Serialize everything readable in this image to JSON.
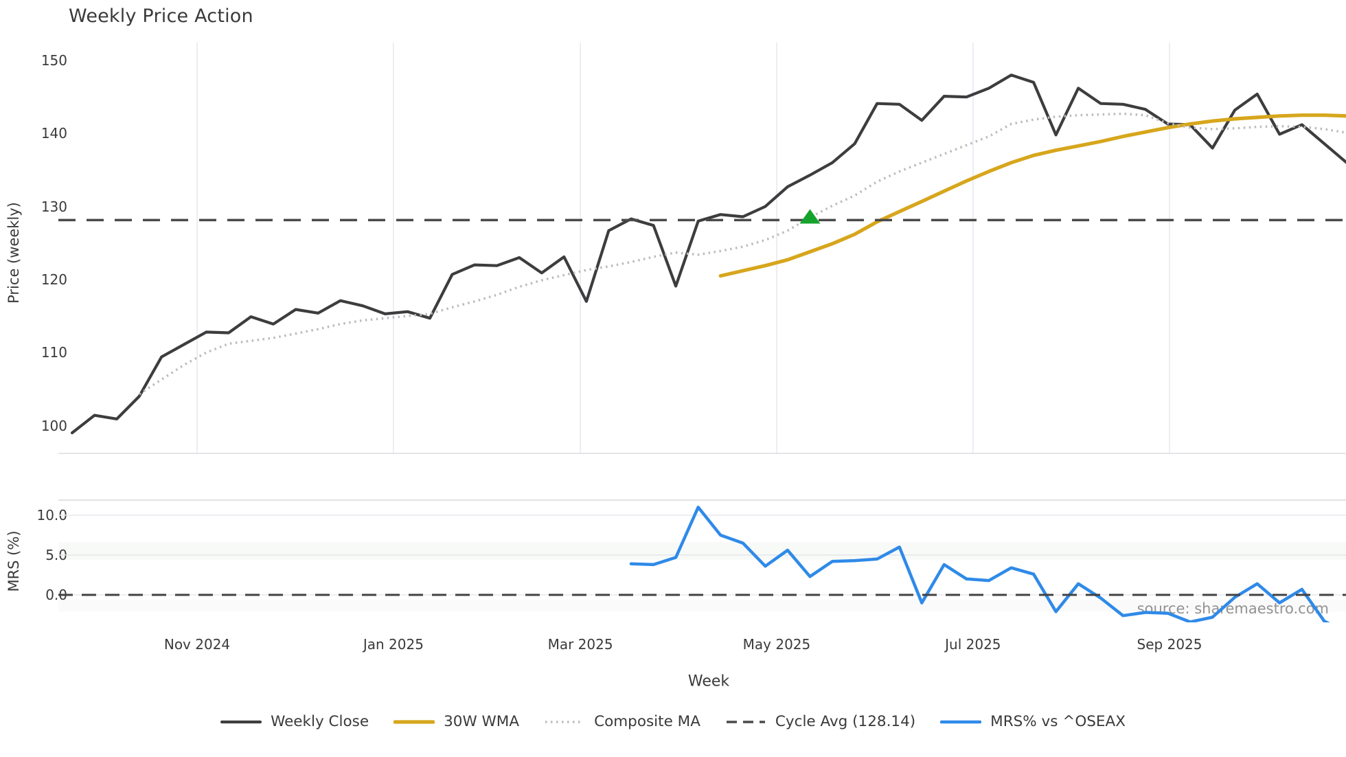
{
  "title": "Weekly Price Action",
  "watermark": "source: sharemaestro.com",
  "legend": {
    "items": [
      {
        "label": "Weekly Close",
        "color": "#3d3d3f",
        "style": "solid",
        "width": 4.2
      },
      {
        "label": "30W WMA",
        "color": "#d7a61c",
        "style": "solid",
        "width": 5.2
      },
      {
        "label": "Composite MA",
        "color": "#bcbcbc",
        "style": "dotted",
        "width": 3.5
      },
      {
        "label": "Cycle Avg (128.14)",
        "color": "#4a4a4b",
        "style": "dashed",
        "width": 3.5
      },
      {
        "label": "MRS% vs ^OSEAX",
        "color": "#2f8ae8",
        "style": "solid",
        "width": 4.5
      }
    ]
  },
  "chart_data": {
    "type": "line",
    "title": "Weekly Price Action",
    "x_axis": {
      "label": "Week",
      "months": [
        {
          "label": "Nov 2024",
          "week": 5.59
        },
        {
          "label": "Jan 2025",
          "week": 14.37
        },
        {
          "label": "Mar 2025",
          "week": 22.73
        },
        {
          "label": "May 2025",
          "week": 31.51
        },
        {
          "label": "Jul 2025",
          "week": 40.29
        },
        {
          "label": "Sep 2025",
          "week": 49.08
        }
      ]
    },
    "panels": [
      {
        "name": "price",
        "ylabel": "Price (weekly)",
        "ylim": [
          97.5,
          152.5
        ],
        "yticks": [
          {
            "value": 150,
            "label": "150"
          },
          {
            "value": 140,
            "label": "140"
          },
          {
            "value": 130,
            "label": "130"
          },
          {
            "value": 120,
            "label": "120"
          },
          {
            "value": 110,
            "label": "110"
          },
          {
            "value": 100,
            "label": "100"
          }
        ],
        "series": [
          {
            "name": "Weekly Close",
            "color": "#3d3d3f",
            "style": "solid",
            "width": 4.2,
            "start_week": 0,
            "values": [
              99.0,
              101.4,
              100.9,
              104.0,
              109.4,
              111.1,
              112.8,
              112.7,
              114.9,
              113.9,
              115.9,
              115.4,
              117.1,
              116.4,
              115.3,
              115.6,
              114.7,
              120.7,
              122.0,
              121.9,
              123.0,
              120.9,
              123.1,
              117.0,
              126.7,
              128.3,
              127.4,
              119.1,
              128.0,
              128.9,
              128.6,
              130.0,
              132.7,
              134.3,
              136.0,
              138.6,
              144.1,
              144.0,
              141.8,
              145.1,
              145.0,
              146.2,
              148.0,
              147.0,
              139.8,
              146.2,
              144.1,
              144.0,
              143.3,
              141.3,
              141.2,
              138.0,
              143.2,
              145.4,
              139.9,
              141.2,
              138.6,
              136.0
            ]
          },
          {
            "name": "30W WMA",
            "color": "#d7a61c",
            "style": "solid",
            "width": 5.2,
            "start_week": 29,
            "values": [
              120.5,
              121.2,
              121.9,
              122.7,
              123.8,
              124.9,
              126.2,
              127.9,
              129.3,
              130.7,
              132.1,
              133.5,
              134.8,
              136.0,
              137.0,
              137.7,
              138.3,
              138.9,
              139.6,
              140.2,
              140.8,
              141.3,
              141.7,
              142.0,
              142.2,
              142.4,
              142.5,
              142.5,
              142.4
            ]
          },
          {
            "name": "Composite MA",
            "color": "#bcbcbc",
            "style": "dotted",
            "width": 3.5,
            "start_week": 3,
            "values": [
              104.3,
              106.3,
              108.3,
              110.0,
              111.2,
              111.6,
              112.0,
              112.6,
              113.2,
              113.9,
              114.4,
              114.7,
              115.0,
              115.3,
              116.2,
              117.0,
              117.9,
              119.0,
              119.9,
              120.6,
              121.3,
              121.8,
              122.4,
              123.1,
              123.7,
              123.4,
              123.9,
              124.5,
              125.4,
              126.7,
              128.5,
              130.1,
              131.5,
              133.4,
              134.8,
              136.0,
              137.2,
              138.4,
              139.6,
              141.3,
              141.9,
              142.3,
              142.5,
              142.6,
              142.7,
              142.5,
              141.4,
              140.8,
              140.6,
              140.7,
              140.9,
              141.0,
              140.9,
              140.6,
              140.1
            ]
          },
          {
            "name": "Cycle Avg",
            "color": "#4a4a4b",
            "style": "dashed",
            "width": 3.6,
            "hline": 128.14
          }
        ],
        "marker": {
          "shape": "triangle-up",
          "name": "buy-signal",
          "color": "#16a32c",
          "week": 33,
          "value": 128.6
        }
      },
      {
        "name": "mrs",
        "ylabel": "MRS (%)",
        "ylim": [
          -3.45,
          11.9
        ],
        "yticks": [
          {
            "value": 10,
            "label": "10.0"
          },
          {
            "value": 5,
            "label": "5.0"
          },
          {
            "value": 0,
            "label": "0.0"
          }
        ],
        "bands": [
          {
            "from": 4.4,
            "to": 6.6,
            "color": "rgba(140,165,140,0.06)"
          },
          {
            "from": -0.6,
            "to": -2.1,
            "color": "rgba(150,155,150,0.05)"
          }
        ],
        "series": [
          {
            "name": "MRS% vs ^OSEAX",
            "color": "#2f8ae8",
            "style": "solid",
            "width": 4.5,
            "start_week": 25,
            "values": [
              3.9,
              3.8,
              4.7,
              11.0,
              7.5,
              6.5,
              3.6,
              5.6,
              2.3,
              4.2,
              4.3,
              4.5,
              6.0,
              -1.0,
              3.8,
              2.0,
              1.8,
              3.4,
              2.6,
              -2.1,
              1.4,
              -0.4,
              -2.6,
              -2.2,
              -2.3,
              -3.4,
              -2.8,
              -0.3,
              1.4,
              -1.0,
              0.7,
              -3.3,
              -4.7
            ]
          },
          {
            "name": "Zero line",
            "color": "#424242",
            "style": "dashed",
            "width": 3.0,
            "hline": 0
          }
        ]
      }
    ]
  }
}
